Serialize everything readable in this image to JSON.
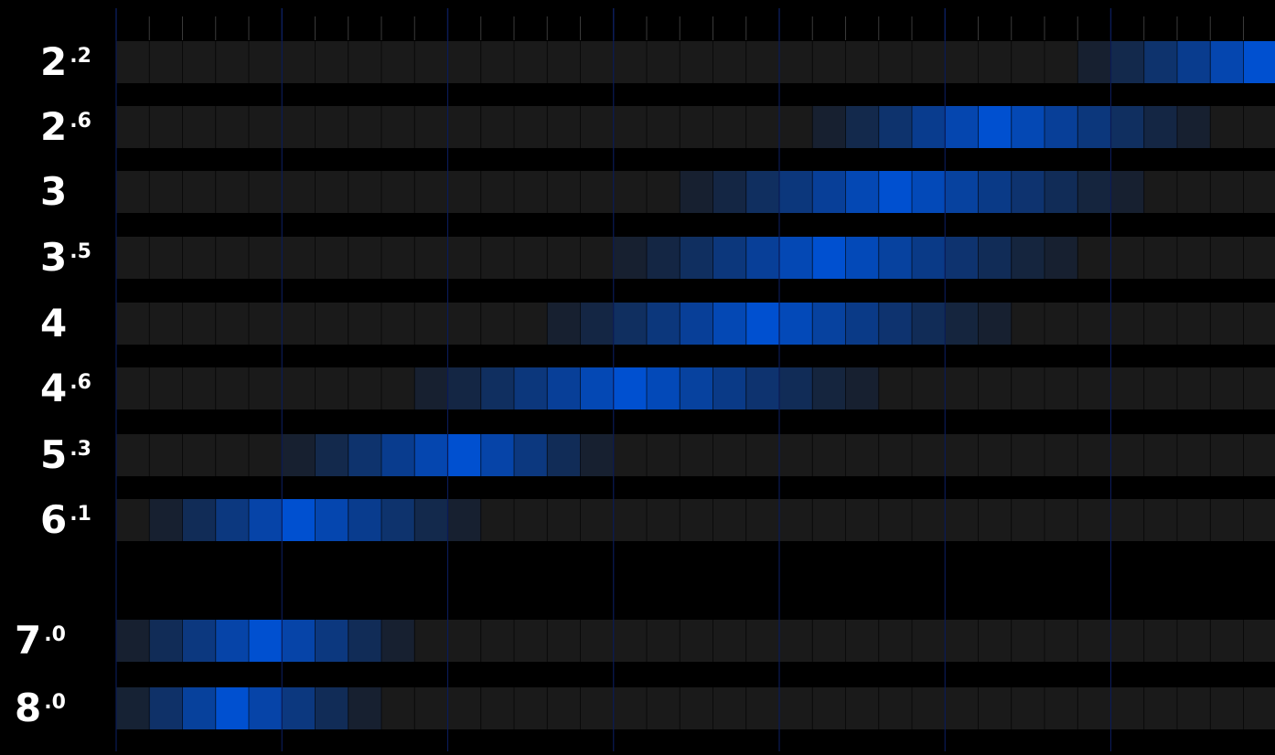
{
  "chart_data": {
    "type": "heatmap",
    "title": "",
    "xlabel": "",
    "ylabel": "",
    "columns": 35,
    "major_tick_every": 5,
    "grid": true,
    "colors": {
      "background": "#000000",
      "cell_empty": "#1a1a1a",
      "cell_peak": "#0050d0",
      "grid_minor": "#2a2a2a",
      "grid_major": "#0a1a55",
      "label": "#ffffff"
    },
    "rows": [
      {
        "label_main": "2",
        "label_sup": ".2",
        "start": 29,
        "peak": 34.5,
        "end": 35
      },
      {
        "label_main": "2",
        "label_sup": ".6",
        "start": 21,
        "peak": 26.5,
        "end": 33
      },
      {
        "label_main": "3",
        "label_sup": "",
        "start": 17,
        "peak": 23.5,
        "end": 31
      },
      {
        "label_main": "3",
        "label_sup": ".5",
        "start": 15,
        "peak": 21.5,
        "end": 29
      },
      {
        "label_main": "4",
        "label_sup": "",
        "start": 13,
        "peak": 19.5,
        "end": 27
      },
      {
        "label_main": "4",
        "label_sup": ".6",
        "start": 9,
        "peak": 15.5,
        "end": 23
      },
      {
        "label_main": "5",
        "label_sup": ".3",
        "start": 5,
        "peak": 10.5,
        "end": 15
      },
      {
        "label_main": "6",
        "label_sup": ".1",
        "start": 1,
        "peak": 5.5,
        "end": 11
      },
      {
        "label_main": "7",
        "label_sup": ".0",
        "start": 0,
        "peak": 4.5,
        "end": 9
      },
      {
        "label_main": "8",
        "label_sup": ".0",
        "start": 0,
        "peak": 3.5,
        "end": 8
      }
    ]
  }
}
